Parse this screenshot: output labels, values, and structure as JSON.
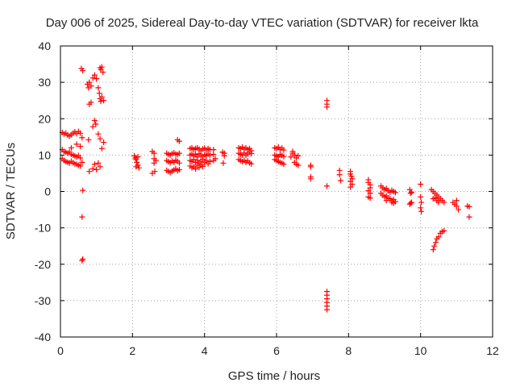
{
  "chart_data": {
    "type": "scatter",
    "title": "Day 006 of 2025, Sidereal Day-to-day VTEC variation (SDTVAR) for receiver lkta",
    "xlabel": "GPS time / hours",
    "ylabel": "SDTVAR / TECUs",
    "xlim": [
      0,
      12
    ],
    "ylim": [
      -40,
      40
    ],
    "xticks": [
      0,
      2,
      4,
      6,
      8,
      10,
      12
    ],
    "yticks": [
      -40,
      -30,
      -20,
      -10,
      0,
      10,
      20,
      30,
      40
    ],
    "xtick_labels": [
      "0",
      "2",
      "4",
      "6",
      "8",
      "10",
      "12"
    ],
    "ytick_labels": [
      "-40",
      "-30",
      "-20",
      "-10",
      "0",
      "10",
      "20",
      "30",
      "40"
    ],
    "grid": true,
    "marker": "+",
    "color": "#ff0000",
    "series": [
      {
        "name": "SDTVAR",
        "points": [
          [
            0.05,
            16.2
          ],
          [
            0.1,
            15.8
          ],
          [
            0.15,
            16.0
          ],
          [
            0.2,
            15.5
          ],
          [
            0.25,
            15.2
          ],
          [
            0.3,
            15.6
          ],
          [
            0.35,
            16.0
          ],
          [
            0.4,
            16.4
          ],
          [
            0.45,
            15.9
          ],
          [
            0.5,
            16.5
          ],
          [
            0.55,
            16.0
          ],
          [
            0.6,
            14.8
          ],
          [
            0.05,
            11.5
          ],
          [
            0.1,
            11.0
          ],
          [
            0.15,
            10.8
          ],
          [
            0.2,
            10.5
          ],
          [
            0.25,
            10.9
          ],
          [
            0.3,
            10.2
          ],
          [
            0.35,
            10.0
          ],
          [
            0.4,
            9.8
          ],
          [
            0.45,
            9.5
          ],
          [
            0.5,
            9.9
          ],
          [
            0.55,
            9.2
          ],
          [
            0.05,
            9.0
          ],
          [
            0.1,
            8.5
          ],
          [
            0.15,
            8.2
          ],
          [
            0.2,
            8.0
          ],
          [
            0.25,
            7.8
          ],
          [
            0.3,
            8.3
          ],
          [
            0.35,
            7.9
          ],
          [
            0.4,
            7.6
          ],
          [
            0.45,
            7.5
          ],
          [
            0.5,
            7.2
          ],
          [
            0.55,
            7.0
          ],
          [
            0.6,
            8.0
          ],
          [
            0.3,
            12.0
          ],
          [
            0.45,
            13.0
          ],
          [
            0.55,
            12.4
          ],
          [
            0.62,
            0.3
          ],
          [
            0.6,
            -7.0
          ],
          [
            0.6,
            -19.0
          ],
          [
            0.62,
            -18.6
          ],
          [
            0.58,
            33.8
          ],
          [
            0.62,
            33.2
          ],
          [
            0.75,
            29.5
          ],
          [
            0.78,
            28.5
          ],
          [
            0.8,
            30.0
          ],
          [
            0.85,
            29.0
          ],
          [
            0.9,
            31.2
          ],
          [
            0.95,
            32.0
          ],
          [
            1.0,
            31.0
          ],
          [
            1.05,
            28.5
          ],
          [
            1.08,
            27.0
          ],
          [
            1.1,
            25.5
          ],
          [
            1.12,
            24.8
          ],
          [
            1.15,
            26.0
          ],
          [
            1.2,
            25.0
          ],
          [
            1.1,
            34.0
          ],
          [
            1.12,
            33.5
          ],
          [
            1.15,
            34.2
          ],
          [
            1.18,
            32.8
          ],
          [
            0.8,
            24.0
          ],
          [
            0.85,
            24.5
          ],
          [
            0.95,
            19.5
          ],
          [
            0.98,
            18.5
          ],
          [
            0.9,
            17.8
          ],
          [
            1.05,
            15.8
          ],
          [
            1.1,
            14.5
          ],
          [
            1.15,
            11.8
          ],
          [
            1.2,
            13.5
          ],
          [
            0.78,
            14.2
          ],
          [
            0.8,
            5.5
          ],
          [
            0.9,
            6.2
          ],
          [
            0.95,
            7.5
          ],
          [
            1.0,
            6.0
          ],
          [
            1.05,
            7.8
          ],
          [
            1.1,
            6.8
          ],
          [
            2.05,
            9.8
          ],
          [
            2.08,
            9.2
          ],
          [
            2.1,
            8.8
          ],
          [
            2.12,
            8.0
          ],
          [
            2.15,
            7.2
          ],
          [
            2.18,
            6.5
          ],
          [
            2.1,
            6.8
          ],
          [
            2.15,
            9.5
          ],
          [
            2.55,
            11.0
          ],
          [
            2.6,
            10.5
          ],
          [
            2.6,
            9.0
          ],
          [
            2.6,
            7.8
          ],
          [
            2.62,
            5.5
          ],
          [
            2.55,
            5.0
          ],
          [
            2.65,
            8.5
          ],
          [
            2.95,
            10.5
          ],
          [
            3.0,
            10.2
          ],
          [
            3.05,
            10.0
          ],
          [
            3.1,
            10.4
          ],
          [
            3.15,
            10.6
          ],
          [
            3.2,
            10.3
          ],
          [
            3.25,
            10.1
          ],
          [
            3.3,
            10.5
          ],
          [
            2.95,
            8.5
          ],
          [
            3.0,
            8.2
          ],
          [
            3.05,
            7.9
          ],
          [
            3.1,
            8.4
          ],
          [
            3.15,
            8.0
          ],
          [
            3.2,
            8.6
          ],
          [
            3.25,
            8.3
          ],
          [
            3.3,
            7.8
          ],
          [
            2.95,
            5.8
          ],
          [
            3.0,
            5.5
          ],
          [
            3.05,
            5.2
          ],
          [
            3.1,
            5.6
          ],
          [
            3.15,
            5.9
          ],
          [
            3.2,
            6.2
          ],
          [
            3.25,
            5.7
          ],
          [
            3.3,
            6.0
          ],
          [
            3.25,
            14.2
          ],
          [
            3.3,
            13.8
          ],
          [
            3.6,
            11.8
          ],
          [
            3.65,
            12.0
          ],
          [
            3.7,
            11.5
          ],
          [
            3.75,
            11.8
          ],
          [
            3.8,
            12.0
          ],
          [
            3.85,
            11.6
          ],
          [
            3.9,
            11.2
          ],
          [
            3.95,
            11.7
          ],
          [
            4.0,
            11.9
          ],
          [
            4.05,
            11.4
          ],
          [
            4.1,
            11.8
          ],
          [
            4.15,
            11.5
          ],
          [
            3.6,
            10.0
          ],
          [
            3.65,
            10.3
          ],
          [
            3.7,
            9.8
          ],
          [
            3.75,
            10.2
          ],
          [
            3.8,
            9.5
          ],
          [
            3.85,
            10.4
          ],
          [
            3.9,
            10.0
          ],
          [
            3.95,
            9.6
          ],
          [
            4.0,
            10.1
          ],
          [
            4.05,
            9.8
          ],
          [
            4.1,
            10.3
          ],
          [
            4.15,
            9.9
          ],
          [
            3.6,
            8.5
          ],
          [
            3.65,
            8.2
          ],
          [
            3.7,
            8.8
          ],
          [
            3.75,
            8.0
          ],
          [
            3.8,
            8.6
          ],
          [
            3.85,
            7.8
          ],
          [
            3.9,
            8.3
          ],
          [
            3.95,
            8.9
          ],
          [
            4.0,
            8.0
          ],
          [
            4.05,
            8.5
          ],
          [
            4.1,
            7.6
          ],
          [
            4.15,
            8.2
          ],
          [
            3.6,
            7.0
          ],
          [
            3.65,
            6.5
          ],
          [
            3.7,
            6.8
          ],
          [
            3.75,
            6.2
          ],
          [
            3.8,
            7.2
          ],
          [
            3.85,
            6.6
          ],
          [
            3.9,
            7.4
          ],
          [
            3.95,
            6.9
          ],
          [
            4.25,
            10.2
          ],
          [
            4.25,
            11.5
          ],
          [
            4.25,
            8.5
          ],
          [
            4.3,
            9.0
          ],
          [
            4.5,
            10.8
          ],
          [
            4.55,
            10.5
          ],
          [
            4.55,
            9.8
          ],
          [
            4.52,
            7.8
          ],
          [
            4.95,
            12.0
          ],
          [
            5.0,
            11.8
          ],
          [
            5.05,
            12.2
          ],
          [
            5.1,
            11.6
          ],
          [
            5.15,
            12.0
          ],
          [
            5.2,
            11.5
          ],
          [
            5.25,
            11.8
          ],
          [
            5.3,
            11.2
          ],
          [
            4.95,
            10.5
          ],
          [
            5.0,
            10.2
          ],
          [
            5.05,
            10.0
          ],
          [
            5.1,
            10.6
          ],
          [
            5.15,
            9.9
          ],
          [
            5.2,
            10.3
          ],
          [
            5.25,
            10.8
          ],
          [
            5.3,
            10.4
          ],
          [
            4.95,
            8.8
          ],
          [
            5.0,
            8.5
          ],
          [
            5.05,
            8.2
          ],
          [
            5.1,
            8.6
          ],
          [
            5.15,
            8.0
          ],
          [
            5.2,
            8.4
          ],
          [
            5.25,
            7.9
          ],
          [
            5.3,
            7.6
          ],
          [
            5.95,
            12.0
          ],
          [
            6.0,
            11.8
          ],
          [
            6.05,
            12.2
          ],
          [
            6.1,
            11.5
          ],
          [
            6.15,
            11.9
          ],
          [
            6.2,
            11.4
          ],
          [
            5.95,
            10.0
          ],
          [
            6.0,
            9.8
          ],
          [
            6.05,
            9.5
          ],
          [
            6.1,
            10.2
          ],
          [
            6.15,
            9.9
          ],
          [
            6.2,
            9.6
          ],
          [
            5.95,
            8.8
          ],
          [
            6.0,
            8.5
          ],
          [
            6.05,
            8.2
          ],
          [
            6.1,
            8.0
          ],
          [
            6.15,
            7.8
          ],
          [
            6.2,
            7.5
          ],
          [
            6.4,
            9.5
          ],
          [
            6.45,
            10.5
          ],
          [
            6.5,
            10.0
          ],
          [
            6.55,
            9.2
          ],
          [
            6.6,
            9.8
          ],
          [
            6.45,
            11.0
          ],
          [
            6.5,
            8.0
          ],
          [
            6.55,
            7.5
          ],
          [
            6.6,
            7.2
          ],
          [
            6.95,
            7.2
          ],
          [
            6.95,
            6.8
          ],
          [
            6.95,
            4.0
          ],
          [
            6.95,
            3.5
          ],
          [
            7.4,
            25.0
          ],
          [
            7.4,
            24.0
          ],
          [
            7.4,
            23.2
          ],
          [
            7.4,
            1.5
          ],
          [
            7.4,
            -27.5
          ],
          [
            7.4,
            -28.5
          ],
          [
            7.4,
            -29.5
          ],
          [
            7.4,
            -30.5
          ],
          [
            7.4,
            -31.5
          ],
          [
            7.4,
            -32.5
          ],
          [
            7.75,
            5.8
          ],
          [
            7.75,
            4.6
          ],
          [
            7.78,
            3.0
          ],
          [
            8.05,
            5.5
          ],
          [
            8.05,
            4.8
          ],
          [
            8.08,
            4.2
          ],
          [
            8.1,
            3.5
          ],
          [
            8.05,
            2.8
          ],
          [
            8.1,
            2.0
          ],
          [
            8.05,
            1.2
          ],
          [
            8.55,
            3.2
          ],
          [
            8.55,
            2.5
          ],
          [
            8.6,
            1.8
          ],
          [
            8.6,
            1.0
          ],
          [
            8.55,
            0.2
          ],
          [
            8.6,
            -0.5
          ],
          [
            8.55,
            -1.5
          ],
          [
            8.6,
            -1.8
          ],
          [
            8.9,
            1.5
          ],
          [
            8.95,
            1.0
          ],
          [
            9.0,
            0.5
          ],
          [
            9.05,
            0.8
          ],
          [
            9.1,
            0.2
          ],
          [
            9.15,
            -0.2
          ],
          [
            9.2,
            0.3
          ],
          [
            9.25,
            0.0
          ],
          [
            9.3,
            -0.3
          ],
          [
            8.9,
            -0.5
          ],
          [
            8.95,
            -1.0
          ],
          [
            9.0,
            -1.5
          ],
          [
            9.05,
            -1.2
          ],
          [
            9.1,
            -1.8
          ],
          [
            9.15,
            -2.0
          ],
          [
            9.2,
            -2.5
          ],
          [
            9.25,
            -2.2
          ],
          [
            9.3,
            -2.8
          ],
          [
            9.2,
            -3.0
          ],
          [
            9.25,
            -3.2
          ],
          [
            9.05,
            -2.5
          ],
          [
            9.7,
            0.5
          ],
          [
            9.72,
            -0.5
          ],
          [
            9.75,
            -0.2
          ],
          [
            9.7,
            -3.5
          ],
          [
            9.72,
            -3.2
          ],
          [
            9.75,
            -3.0
          ],
          [
            10.0,
            2.0
          ],
          [
            10.0,
            -1.5
          ],
          [
            10.02,
            -3.0
          ],
          [
            10.0,
            -4.5
          ],
          [
            10.02,
            -5.5
          ],
          [
            10.3,
            0.5
          ],
          [
            10.35,
            0.0
          ],
          [
            10.4,
            -0.5
          ],
          [
            10.45,
            -1.0
          ],
          [
            10.5,
            -1.5
          ],
          [
            10.55,
            -2.0
          ],
          [
            10.6,
            -2.5
          ],
          [
            10.65,
            -3.0
          ],
          [
            10.35,
            -2.0
          ],
          [
            10.4,
            -1.8
          ],
          [
            10.45,
            -2.5
          ],
          [
            10.5,
            -3.0
          ],
          [
            10.35,
            -16.0
          ],
          [
            10.38,
            -15.0
          ],
          [
            10.42,
            -14.0
          ],
          [
            10.45,
            -13.0
          ],
          [
            10.5,
            -12.5
          ],
          [
            10.55,
            -11.5
          ],
          [
            10.6,
            -11.0
          ],
          [
            10.65,
            -10.8
          ],
          [
            10.9,
            -3.0
          ],
          [
            10.95,
            -3.5
          ],
          [
            11.0,
            -4.0
          ],
          [
            11.05,
            -5.0
          ],
          [
            11.0,
            -2.5
          ],
          [
            11.3,
            -4.0
          ],
          [
            11.35,
            -4.2
          ],
          [
            11.35,
            -7.0
          ]
        ]
      }
    ]
  }
}
